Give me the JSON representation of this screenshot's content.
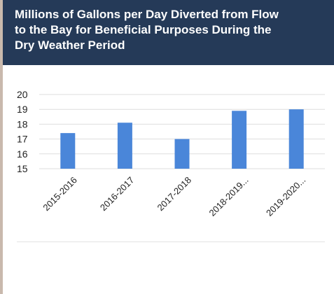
{
  "colors": {
    "header_bg": "#253a58",
    "bar": "#4a86d9",
    "grid": "#dedede"
  },
  "chart_data": {
    "type": "bar",
    "title_lines": [
      "Millions of Gallons per Day Diverted from Flow",
      "to the Bay for Beneficial Purposes During the",
      "Dry Weather Period"
    ],
    "categories": [
      "2015-2016",
      "2016-2017",
      "2017-2018",
      "2018-2019...",
      "2019-2020..."
    ],
    "values": [
      17.4,
      18.1,
      17.0,
      18.9,
      19.0
    ],
    "ylim": [
      15,
      20
    ],
    "yticks": [
      "20",
      "19",
      "18",
      "17",
      "16",
      "15"
    ],
    "xlabel": "",
    "ylabel": "",
    "grid": true
  }
}
